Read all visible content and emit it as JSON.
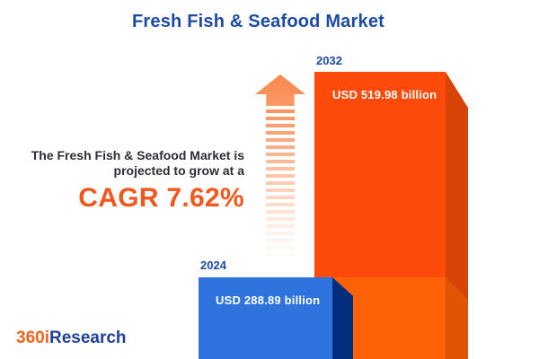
{
  "title": "Fresh Fish & Seafood Market",
  "description": {
    "line1": "The Fresh Fish & Seafood Market is",
    "line2": "projected to grow at a",
    "cagr": "CAGR 7.62%"
  },
  "bars": {
    "y2032": {
      "year": "2032",
      "value_label": "USD 519.98 billion"
    },
    "y2024": {
      "year": "2024",
      "value_label": "USD 288.89 billion"
    }
  },
  "logo": {
    "prefix": "360i",
    "suffix": "Research"
  },
  "icons": {
    "growth_arrow": "up-arrow-dashed-fade"
  },
  "colors": {
    "title_blue": "#1c4ba6",
    "accent_orange": "#f4571c",
    "bar_2024_front": "#2f73df",
    "bar_2024_side": "#032e7d",
    "bar_2032_front_top": "#fb4a09",
    "bar_2032_front_bottom": "#fd6206",
    "bar_2032_side_top": "#d84307",
    "bar_2032_side_bottom": "#e05505",
    "arrow_orange": "#f8935e",
    "text_dark": "#2e2e33",
    "bar_label_white": "#ffffff"
  },
  "chart_data": {
    "type": "bar",
    "title": "Fresh Fish & Seafood Market",
    "categories": [
      "2024",
      "2032"
    ],
    "values": [
      288.89,
      519.98
    ],
    "unit": "USD billion",
    "value_labels": [
      "USD 288.89 billion",
      "USD 519.98 billion"
    ],
    "series_colors": [
      "#2f73df",
      "#fb4a09"
    ],
    "annotation": "CAGR 7.62%",
    "cagr_percent": 7.62,
    "orientation": "vertical",
    "style": "3d-extruded-bars",
    "axes": false,
    "grid": false,
    "legend": false
  }
}
